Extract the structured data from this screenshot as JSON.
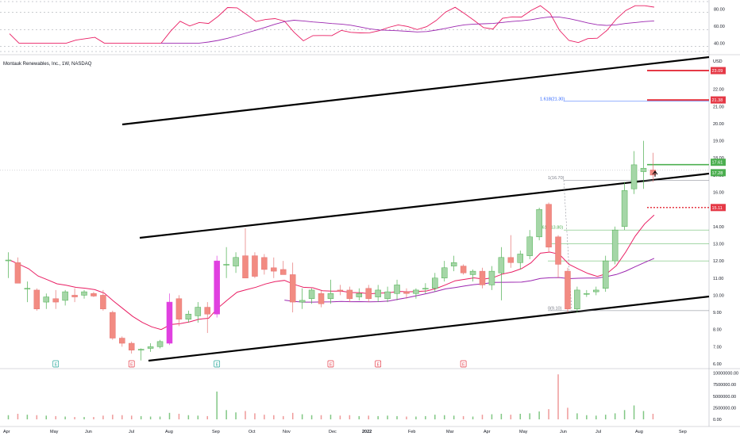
{
  "chart_data": {
    "type": "candlestick",
    "title": "Montauk Renewables, Inc., 1W, NASDAQ",
    "currency": "USD",
    "x_ticks": [
      "Apr",
      "May",
      "Jun",
      "Jul",
      "Aug",
      "Sep",
      "Oct",
      "Nov",
      "Dec",
      "2022",
      "Feb",
      "Mar",
      "Apr",
      "May",
      "Jun",
      "Jul",
      "Aug",
      "Sep"
    ],
    "price_ticks": [
      "23.00",
      "22.00",
      "21.00",
      "20.00",
      "19.00",
      "18.00",
      "17.00",
      "16.00",
      "15.00",
      "14.00",
      "13.00",
      "12.00",
      "11.00",
      "10.00",
      "9.00",
      "8.00",
      "7.00",
      "6.00"
    ],
    "price_ylim": [
      5.6,
      24.2
    ],
    "volume_ticks": [
      "10000000.00",
      "7500000.00",
      "5000000.00",
      "2500000.00",
      "0.00"
    ],
    "rsi_ticks": [
      "80.00",
      "60.00",
      "40.00"
    ],
    "price_badges": [
      {
        "label": "23.09",
        "value": 23.09,
        "color": "#e53946"
      },
      {
        "label": "21.38",
        "value": 21.38,
        "color": "#e53946"
      },
      {
        "label": "17.61",
        "value": 17.61,
        "color": "#4caf50"
      },
      {
        "label": "17.28",
        "value": 17.28,
        "color": "#4caf50"
      },
      {
        "label": "15.11",
        "value": 15.11,
        "color": "#e53946"
      }
    ],
    "fib_labels": [
      {
        "label": "1.618(21.30)",
        "value": 21.3,
        "color": "#2962ff"
      },
      {
        "label": "1(16.70)",
        "value": 16.7,
        "color": "#787b86"
      },
      {
        "label": "0.618(13.80)",
        "value": 13.8,
        "color": "#4caf50"
      },
      {
        "label": "0(9.10)",
        "value": 9.1,
        "color": "#787b86"
      }
    ],
    "earnings_markers": [
      {
        "week": 5,
        "label": "E",
        "color": "#26a69a"
      },
      {
        "week": 13,
        "label": "E",
        "color": "#e53946"
      },
      {
        "week": 22,
        "label": "E",
        "color": "#26a69a"
      },
      {
        "week": 34,
        "label": "E",
        "color": "#e53946"
      },
      {
        "week": 39,
        "label": "E",
        "color": "#e53946"
      },
      {
        "week": 48,
        "label": "E",
        "color": "#e53946"
      }
    ],
    "candles": [
      {
        "o": 12.05,
        "h": 12.5,
        "l": 11.0,
        "c": 12.05,
        "v": 0.9
      },
      {
        "o": 11.9,
        "h": 12.2,
        "l": 10.7,
        "c": 10.7,
        "v": 1.2
      },
      {
        "o": 10.4,
        "h": 10.8,
        "l": 9.6,
        "c": 10.4,
        "v": 1.0
      },
      {
        "o": 10.3,
        "h": 10.4,
        "l": 9.1,
        "c": 9.2,
        "v": 0.9
      },
      {
        "o": 9.6,
        "h": 10.1,
        "l": 9.2,
        "c": 9.9,
        "v": 0.8
      },
      {
        "o": 9.8,
        "h": 10.3,
        "l": 9.2,
        "c": 9.6,
        "v": 0.7
      },
      {
        "o": 9.7,
        "h": 10.3,
        "l": 9.4,
        "c": 10.2,
        "v": 0.6
      },
      {
        "o": 10.0,
        "h": 10.4,
        "l": 9.6,
        "c": 9.9,
        "v": 0.5
      },
      {
        "o": 10.0,
        "h": 10.3,
        "l": 9.8,
        "c": 10.2,
        "v": 0.5
      },
      {
        "o": 10.1,
        "h": 10.2,
        "l": 9.9,
        "c": 9.95,
        "v": 0.5
      },
      {
        "o": 10.0,
        "h": 10.3,
        "l": 9.1,
        "c": 9.2,
        "v": 0.8
      },
      {
        "o": 9.0,
        "h": 9.1,
        "l": 7.4,
        "c": 7.5,
        "v": 1.0
      },
      {
        "o": 7.5,
        "h": 7.6,
        "l": 7.0,
        "c": 7.2,
        "v": 0.9
      },
      {
        "o": 7.2,
        "h": 7.3,
        "l": 6.6,
        "c": 6.8,
        "v": 0.8
      },
      {
        "o": 6.8,
        "h": 6.9,
        "l": 6.2,
        "c": 6.85,
        "v": 0.7
      },
      {
        "o": 6.9,
        "h": 7.2,
        "l": 6.7,
        "c": 7.0,
        "v": 0.6
      },
      {
        "o": 7.0,
        "h": 7.4,
        "l": 6.9,
        "c": 7.3,
        "v": 0.6
      },
      {
        "o": 7.2,
        "h": 10.1,
        "l": 7.1,
        "c": 9.6,
        "v": 1.4,
        "color": "#e040e0"
      },
      {
        "o": 9.8,
        "h": 10.0,
        "l": 8.2,
        "c": 8.6,
        "v": 1.2
      },
      {
        "o": 8.6,
        "h": 9.1,
        "l": 8.4,
        "c": 8.9,
        "v": 0.9
      },
      {
        "o": 8.8,
        "h": 9.6,
        "l": 8.4,
        "c": 9.3,
        "v": 0.8
      },
      {
        "o": 9.3,
        "h": 9.6,
        "l": 7.8,
        "c": 8.9,
        "v": 0.7
      },
      {
        "o": 8.9,
        "h": 12.3,
        "l": 8.7,
        "c": 12.0,
        "v": 6.0,
        "color": "#e040e0"
      },
      {
        "o": 11.8,
        "h": 12.8,
        "l": 11.0,
        "c": 11.8,
        "v": 2.0
      },
      {
        "o": 11.7,
        "h": 12.5,
        "l": 11.3,
        "c": 12.2,
        "v": 1.5
      },
      {
        "o": 12.3,
        "h": 13.9,
        "l": 11.0,
        "c": 11.0,
        "v": 1.8
      },
      {
        "o": 12.3,
        "h": 12.5,
        "l": 11.0,
        "c": 11.1,
        "v": 1.3
      },
      {
        "o": 12.2,
        "h": 12.4,
        "l": 11.2,
        "c": 11.5,
        "v": 1.0
      },
      {
        "o": 11.6,
        "h": 12.2,
        "l": 11.0,
        "c": 11.4,
        "v": 0.9
      },
      {
        "o": 11.5,
        "h": 12.0,
        "l": 11.2,
        "c": 11.2,
        "v": 0.7
      },
      {
        "o": 11.2,
        "h": 11.9,
        "l": 9.0,
        "c": 9.6,
        "v": 1.4
      },
      {
        "o": 9.6,
        "h": 10.4,
        "l": 9.2,
        "c": 9.7,
        "v": 1.1
      },
      {
        "o": 9.8,
        "h": 10.4,
        "l": 9.5,
        "c": 10.3,
        "v": 0.9
      },
      {
        "o": 10.1,
        "h": 10.3,
        "l": 9.3,
        "c": 9.5,
        "v": 0.9
      },
      {
        "o": 9.8,
        "h": 10.9,
        "l": 9.5,
        "c": 10.1,
        "v": 1.0
      },
      {
        "o": 10.3,
        "h": 10.6,
        "l": 10.0,
        "c": 10.25,
        "v": 0.8
      },
      {
        "o": 10.3,
        "h": 10.5,
        "l": 9.6,
        "c": 9.8,
        "v": 0.9
      },
      {
        "o": 9.9,
        "h": 10.4,
        "l": 9.7,
        "c": 10.1,
        "v": 0.7
      },
      {
        "o": 10.4,
        "h": 10.6,
        "l": 9.6,
        "c": 9.8,
        "v": 0.8
      },
      {
        "o": 9.9,
        "h": 10.6,
        "l": 9.6,
        "c": 10.3,
        "v": 0.7
      },
      {
        "o": 9.8,
        "h": 10.5,
        "l": 9.6,
        "c": 10.2,
        "v": 0.8
      },
      {
        "o": 10.1,
        "h": 10.9,
        "l": 9.7,
        "c": 10.6,
        "v": 0.7
      },
      {
        "o": 10.2,
        "h": 10.4,
        "l": 9.8,
        "c": 10.1,
        "v": 0.6
      },
      {
        "o": 10.1,
        "h": 10.4,
        "l": 9.8,
        "c": 10.3,
        "v": 0.6
      },
      {
        "o": 10.4,
        "h": 10.7,
        "l": 10.1,
        "c": 10.4,
        "v": 0.7
      },
      {
        "o": 10.4,
        "h": 11.3,
        "l": 10.2,
        "c": 11.0,
        "v": 1.0
      },
      {
        "o": 11.0,
        "h": 12.0,
        "l": 10.8,
        "c": 11.6,
        "v": 0.9
      },
      {
        "o": 11.7,
        "h": 12.3,
        "l": 11.4,
        "c": 11.9,
        "v": 0.8
      },
      {
        "o": 11.7,
        "h": 11.8,
        "l": 11.2,
        "c": 11.3,
        "v": 0.7
      },
      {
        "o": 11.2,
        "h": 11.5,
        "l": 10.8,
        "c": 11.4,
        "v": 0.6
      },
      {
        "o": 11.4,
        "h": 11.6,
        "l": 10.4,
        "c": 10.6,
        "v": 1.0
      },
      {
        "o": 10.6,
        "h": 11.7,
        "l": 10.3,
        "c": 11.4,
        "v": 1.1
      },
      {
        "o": 11.3,
        "h": 12.8,
        "l": 9.7,
        "c": 12.2,
        "v": 1.2
      },
      {
        "o": 12.2,
        "h": 13.5,
        "l": 11.6,
        "c": 11.9,
        "v": 1.0
      },
      {
        "o": 11.9,
        "h": 12.6,
        "l": 11.5,
        "c": 12.4,
        "v": 1.2
      },
      {
        "o": 12.3,
        "h": 13.8,
        "l": 12.1,
        "c": 13.4,
        "v": 1.3
      },
      {
        "o": 13.4,
        "h": 15.1,
        "l": 13.2,
        "c": 15.0,
        "v": 1.7
      },
      {
        "o": 15.3,
        "h": 15.4,
        "l": 12.5,
        "c": 12.8,
        "v": 2.2
      },
      {
        "o": 13.4,
        "h": 13.5,
        "l": 11.0,
        "c": 11.8,
        "v": 9.7
      },
      {
        "o": 11.4,
        "h": 11.6,
        "l": 9.0,
        "c": 9.2,
        "v": 2.5
      },
      {
        "o": 9.2,
        "h": 10.5,
        "l": 9.0,
        "c": 10.3,
        "v": 1.3
      },
      {
        "o": 10.1,
        "h": 10.3,
        "l": 9.9,
        "c": 10.1,
        "v": 0.9
      },
      {
        "o": 10.2,
        "h": 10.5,
        "l": 10.0,
        "c": 10.3,
        "v": 0.8
      },
      {
        "o": 10.4,
        "h": 12.3,
        "l": 10.2,
        "c": 12.0,
        "v": 1.0
      },
      {
        "o": 12.0,
        "h": 14.0,
        "l": 11.8,
        "c": 13.8,
        "v": 1.3
      },
      {
        "o": 14.0,
        "h": 16.6,
        "l": 13.8,
        "c": 16.1,
        "v": 2.0
      },
      {
        "o": 16.2,
        "h": 18.4,
        "l": 15.9,
        "c": 17.6,
        "v": 3.0
      },
      {
        "o": 17.2,
        "h": 19.0,
        "l": 16.2,
        "c": 17.4,
        "v": 1.8
      },
      {
        "o": 17.3,
        "h": 18.3,
        "l": 16.6,
        "c": 17.0,
        "v": 1.2
      }
    ]
  }
}
